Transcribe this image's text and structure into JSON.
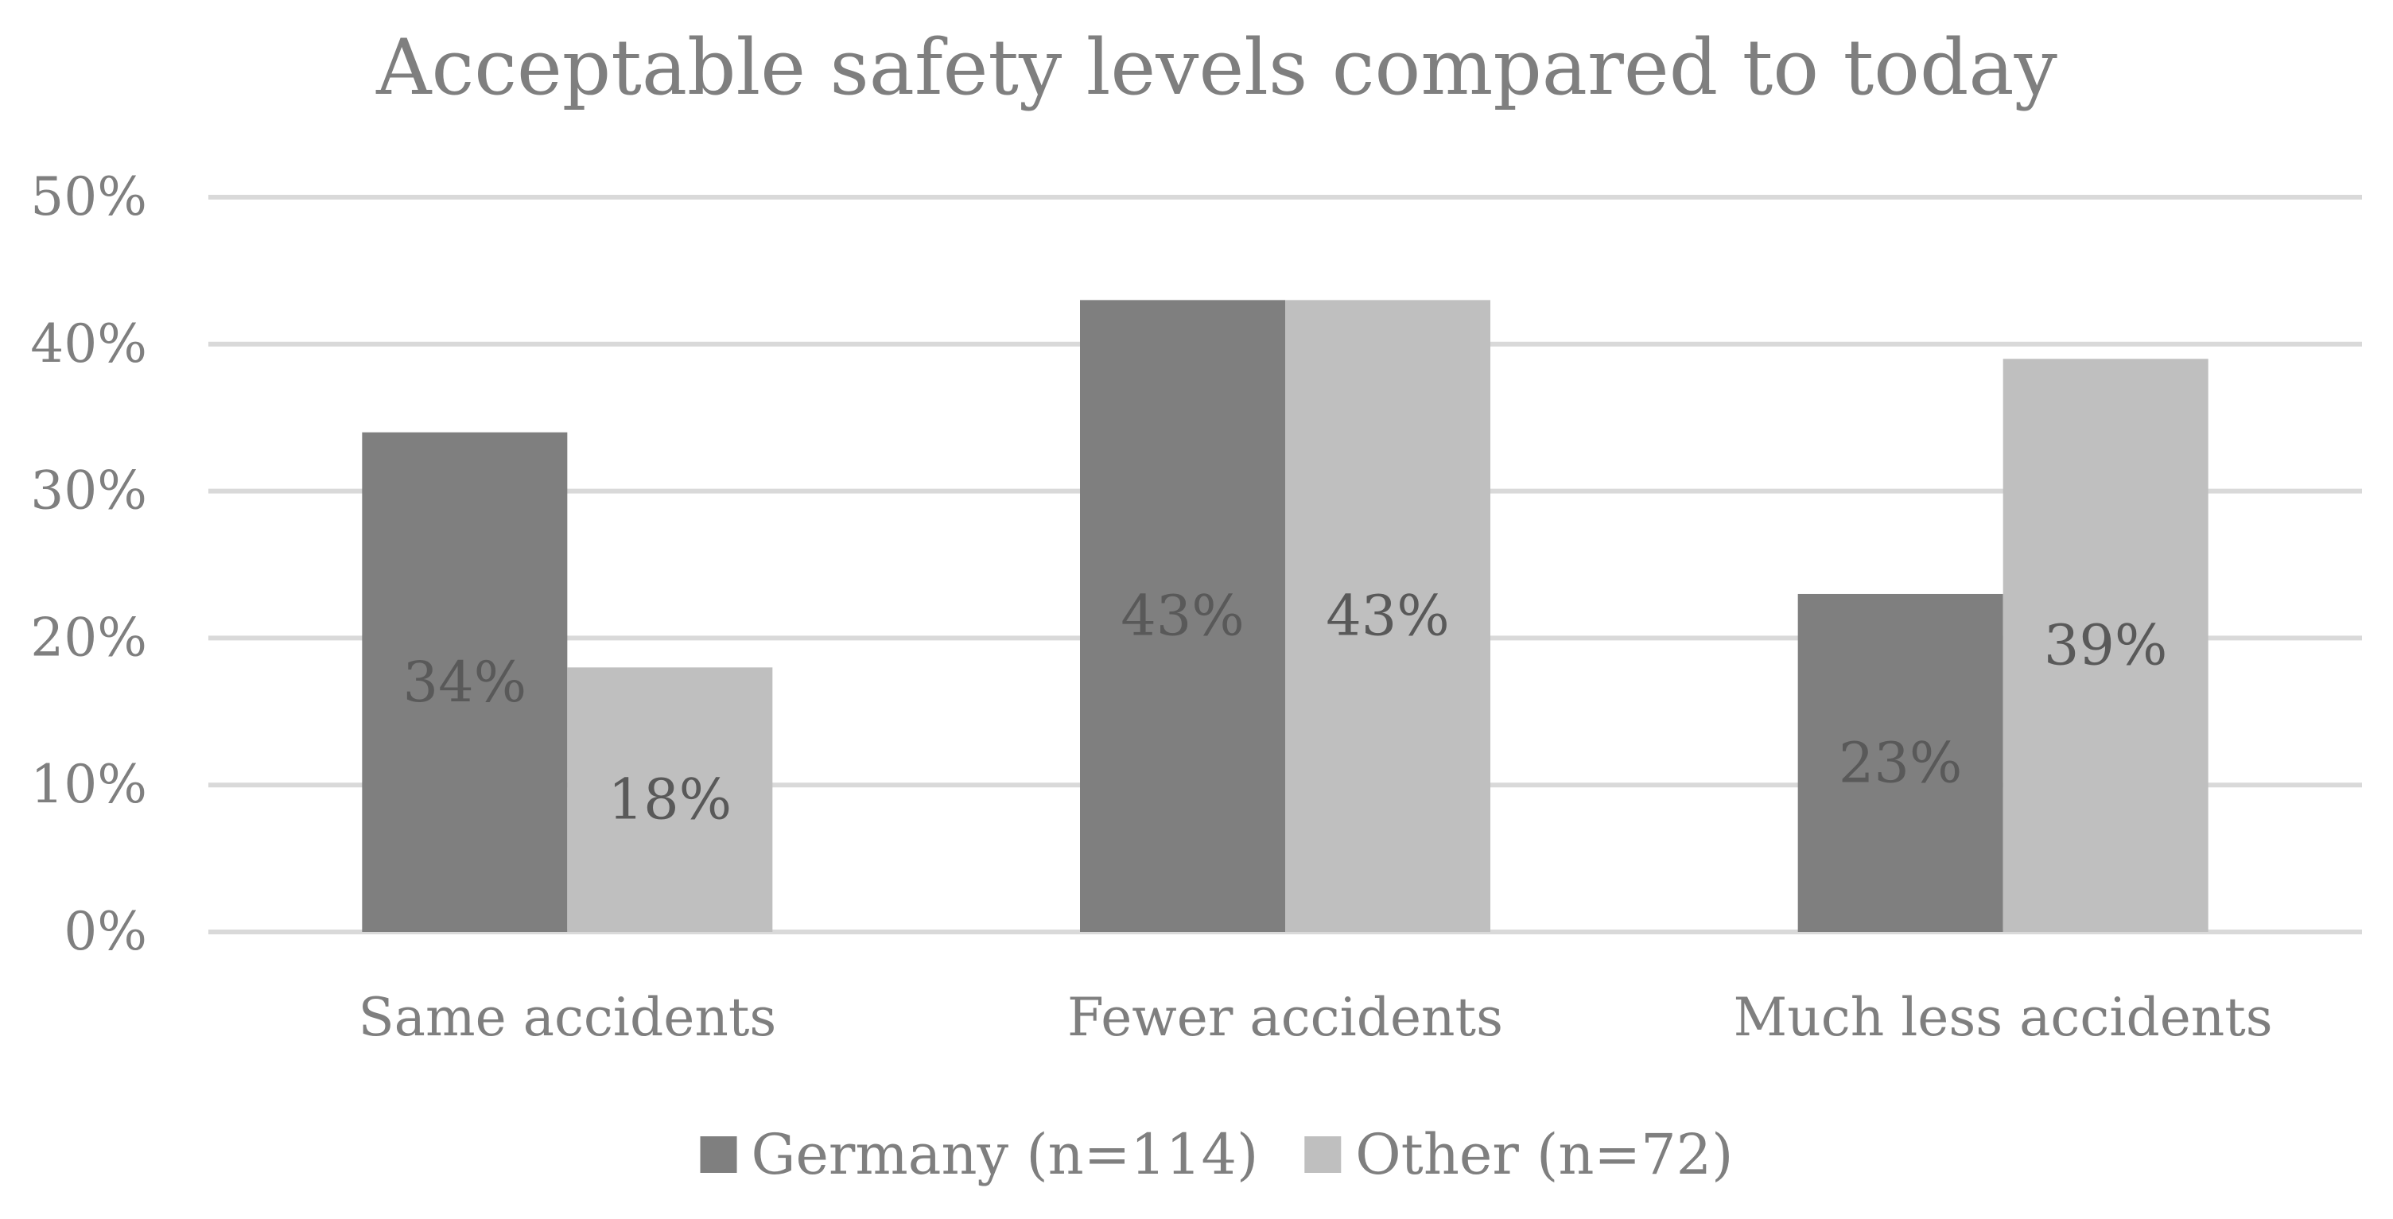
{
  "chart_data": {
    "type": "bar",
    "title": "Acceptable safety levels compared to today",
    "categories": [
      "Same accidents",
      "Fewer accidents",
      "Much less accidents"
    ],
    "series": [
      {
        "name": "Germany (n=114)",
        "values": [
          34,
          43,
          23
        ],
        "labels": [
          "34%",
          "43%",
          "23%"
        ],
        "color": "#7f7f7f"
      },
      {
        "name": "Other (n=72)",
        "values": [
          18,
          43,
          39
        ],
        "labels": [
          "18%",
          "43%",
          "39%"
        ],
        "color": "#bfbfbf"
      }
    ],
    "ylim": [
      0,
      50
    ],
    "yticks": [
      0,
      10,
      20,
      30,
      40,
      50
    ],
    "ytick_labels": [
      "0%",
      "10%",
      "20%",
      "30%",
      "40%",
      "50%"
    ],
    "xlabel": "",
    "ylabel": "",
    "grid": true,
    "legend_position": "bottom"
  }
}
